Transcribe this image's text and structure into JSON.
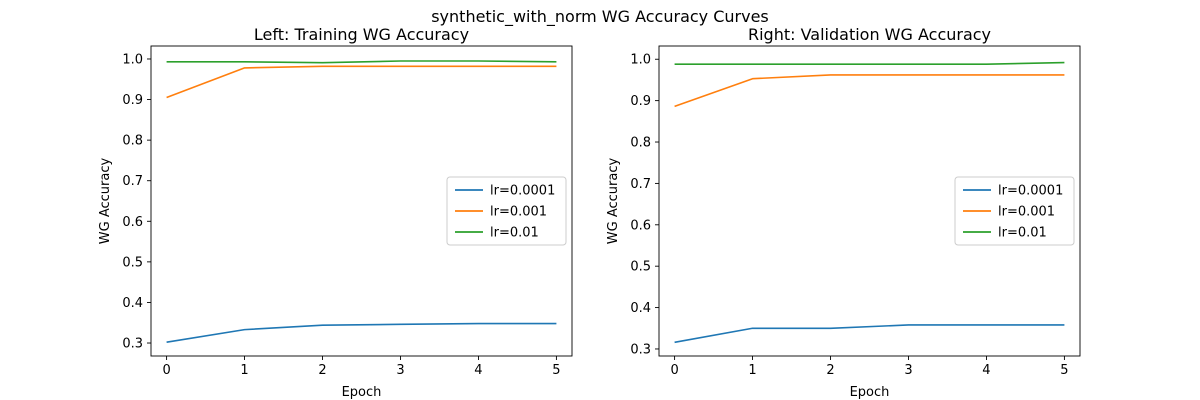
{
  "figure": {
    "suptitle": "synthetic_with_norm WG Accuracy Curves"
  },
  "chart_data": [
    {
      "type": "line",
      "title": "Left: Training WG Accuracy",
      "xlabel": "Epoch",
      "ylabel": "WG Accuracy",
      "x": [
        0,
        1,
        2,
        3,
        4,
        5
      ],
      "xlim": [
        -0.2,
        5.2
      ],
      "ylim": [
        0.268,
        1.032
      ],
      "xticks": [
        0,
        1,
        2,
        3,
        4,
        5
      ],
      "yticks": [
        0.3,
        0.4,
        0.5,
        0.6,
        0.7,
        0.8,
        0.9,
        1.0
      ],
      "grid": false,
      "legend_position": "center-right",
      "series": [
        {
          "name": "lr=0.0001",
          "color": "#1f77b4",
          "values": [
            0.302,
            0.333,
            0.344,
            0.346,
            0.348,
            0.348
          ]
        },
        {
          "name": "lr=0.001",
          "color": "#ff7f0e",
          "values": [
            0.905,
            0.978,
            0.982,
            0.982,
            0.982,
            0.982
          ]
        },
        {
          "name": "lr=0.01",
          "color": "#2ca02c",
          "values": [
            0.993,
            0.993,
            0.991,
            0.995,
            0.995,
            0.993
          ]
        }
      ]
    },
    {
      "type": "line",
      "title": "Right: Validation WG Accuracy",
      "xlabel": "Epoch",
      "ylabel": "WG Accuracy",
      "x": [
        0,
        1,
        2,
        3,
        4,
        5
      ],
      "xlim": [
        -0.2,
        5.2
      ],
      "ylim": [
        0.283,
        1.032
      ],
      "xticks": [
        0,
        1,
        2,
        3,
        4,
        5
      ],
      "yticks": [
        0.3,
        0.4,
        0.5,
        0.6,
        0.7,
        0.8,
        0.9,
        1.0
      ],
      "grid": false,
      "legend_position": "center-right",
      "series": [
        {
          "name": "lr=0.0001",
          "color": "#1f77b4",
          "values": [
            0.316,
            0.35,
            0.35,
            0.358,
            0.358,
            0.358
          ]
        },
        {
          "name": "lr=0.001",
          "color": "#ff7f0e",
          "values": [
            0.886,
            0.953,
            0.962,
            0.962,
            0.962,
            0.962
          ]
        },
        {
          "name": "lr=0.01",
          "color": "#2ca02c",
          "values": [
            0.988,
            0.988,
            0.988,
            0.988,
            0.988,
            0.992
          ]
        }
      ]
    }
  ]
}
